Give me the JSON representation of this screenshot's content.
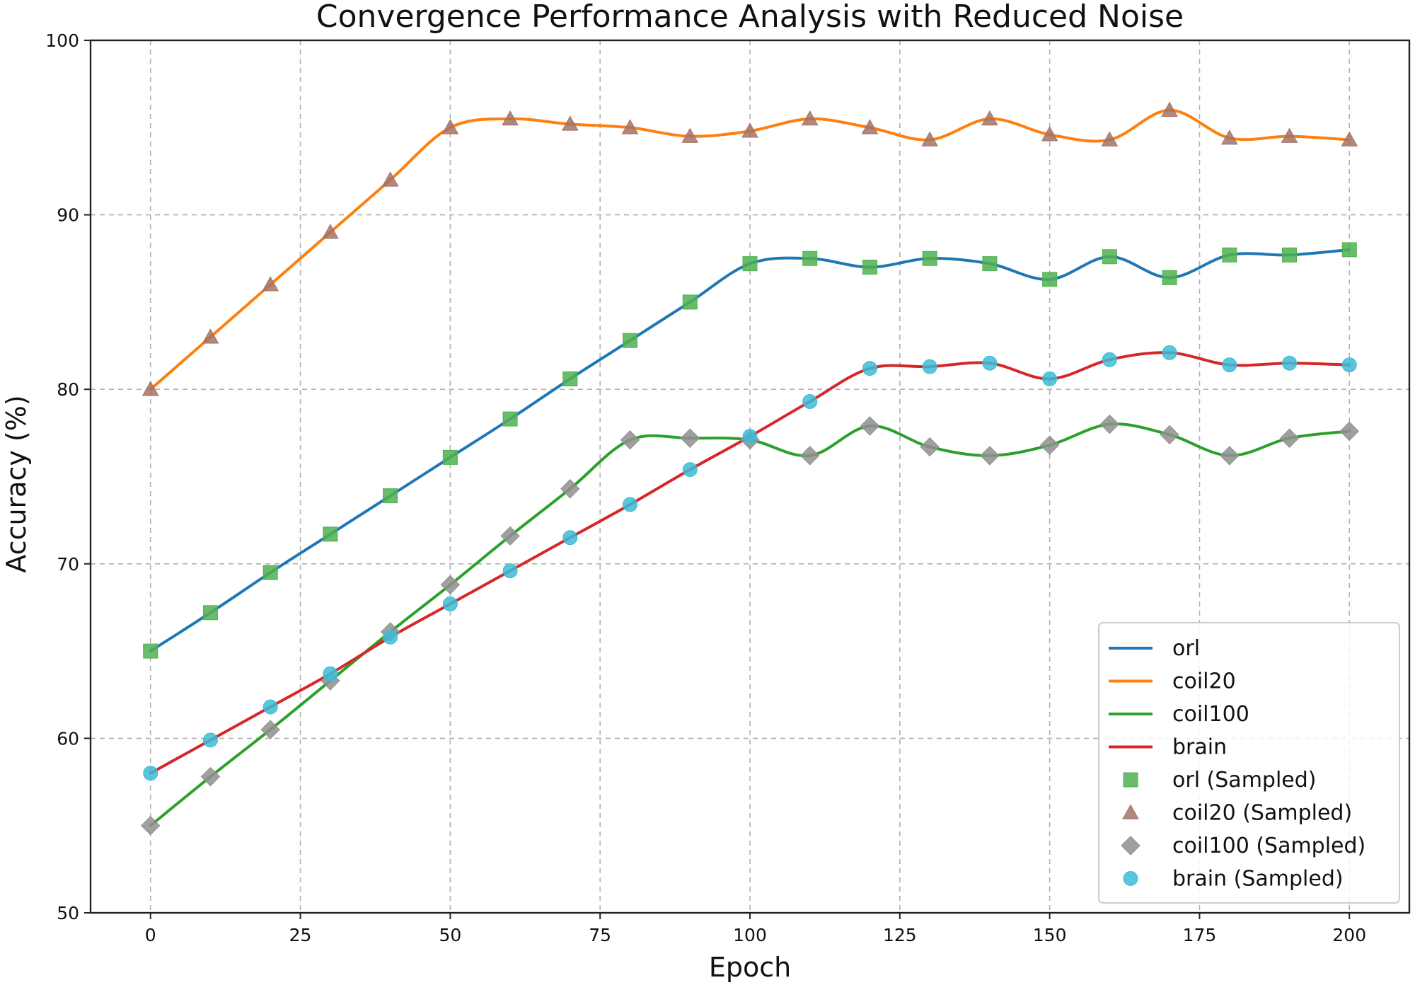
{
  "chart_data": {
    "type": "line",
    "title": "Convergence Performance Analysis with Reduced Noise",
    "xlabel": "Epoch",
    "ylabel": "Accuracy (%)",
    "xlim": [
      -10,
      210
    ],
    "ylim": [
      50,
      100
    ],
    "xticks": [
      0,
      25,
      50,
      75,
      100,
      125,
      150,
      175,
      200
    ],
    "yticks": [
      50,
      60,
      70,
      80,
      90,
      100
    ],
    "grid": true,
    "legend_position": "bottom-right",
    "sampled_x": [
      0,
      10,
      20,
      30,
      40,
      50,
      60,
      70,
      80,
      90,
      100,
      110,
      120,
      130,
      140,
      150,
      160,
      170,
      180,
      190,
      200
    ],
    "series": [
      {
        "name": "orl",
        "sampled_name": "orl (Sampled)",
        "line_color": "#1f77b4",
        "marker": "square",
        "marker_color": "#4fb04f",
        "values": [
          65.0,
          67.2,
          69.5,
          71.7,
          73.9,
          76.1,
          78.3,
          80.6,
          82.8,
          85.0,
          87.2,
          87.5,
          87.0,
          87.5,
          87.2,
          86.3,
          87.6,
          86.4,
          87.7,
          87.7,
          88.0
        ]
      },
      {
        "name": "coil20",
        "sampled_name": "coil20 (Sampled)",
        "line_color": "#ff7f0e",
        "marker": "triangle",
        "marker_color": "#a57265",
        "values": [
          80.0,
          83.0,
          86.0,
          89.0,
          92.0,
          95.0,
          95.5,
          95.2,
          95.0,
          94.5,
          94.8,
          95.5,
          95.0,
          94.3,
          95.5,
          94.6,
          94.3,
          96.0,
          94.4,
          94.5,
          94.3
        ]
      },
      {
        "name": "coil100",
        "sampled_name": "coil100 (Sampled)",
        "line_color": "#2ca02c",
        "marker": "diamond",
        "marker_color": "#8f8f8f",
        "values": [
          55.0,
          57.8,
          60.5,
          63.3,
          66.1,
          68.8,
          71.6,
          74.3,
          77.1,
          77.2,
          77.1,
          76.2,
          77.9,
          76.7,
          76.2,
          76.8,
          78.0,
          77.4,
          76.2,
          77.2,
          77.6
        ]
      },
      {
        "name": "brain",
        "sampled_name": "brain (Sampled)",
        "line_color": "#d62728",
        "marker": "circle",
        "marker_color": "#3cbcd6",
        "values": [
          58.0,
          59.9,
          61.8,
          63.7,
          65.8,
          67.7,
          69.6,
          71.5,
          73.4,
          75.4,
          77.3,
          79.3,
          81.2,
          81.3,
          81.5,
          80.6,
          81.7,
          82.1,
          81.4,
          81.5,
          81.4
        ]
      }
    ]
  }
}
